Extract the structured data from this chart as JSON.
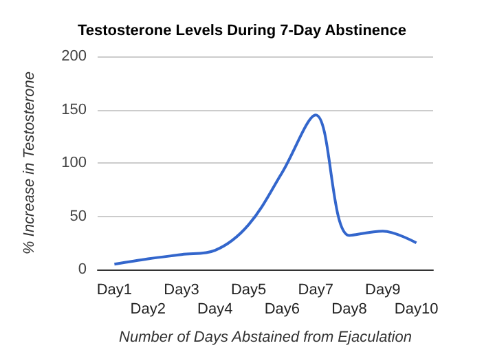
{
  "chart_data": {
    "type": "line",
    "title": "Testosterone Levels During 7-Day Abstinence",
    "xlabel": "Number of Days Abstained from Ejaculation",
    "ylabel": "% Increase in Testosterone",
    "categories": [
      "Day1",
      "Day2",
      "Day3",
      "Day4",
      "Day5",
      "Day6",
      "Day7",
      "Day8",
      "Day9",
      "Day10"
    ],
    "series": [
      {
        "color": "#3366cc",
        "values": [
          5,
          10,
          14,
          18,
          42,
          91,
          145,
          32,
          36,
          25
        ]
      }
    ],
    "ylim": [
      0,
      200
    ],
    "yticks": [
      0,
      50,
      100,
      150,
      200
    ],
    "grid": "y",
    "marker": "none",
    "line_style": "solid"
  }
}
